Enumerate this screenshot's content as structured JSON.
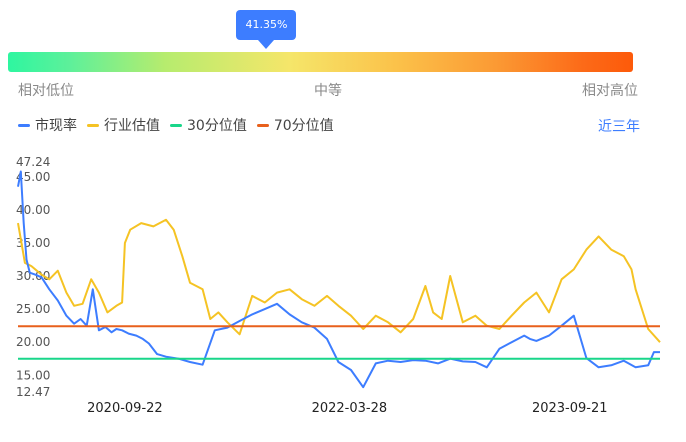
{
  "gauge": {
    "percent": 41.35,
    "value_label": "41.35%",
    "low_label": "相对低位",
    "mid_label": "中等",
    "high_label": "相对高位"
  },
  "legend": [
    {
      "name": "市现率",
      "color": "#3d7dff"
    },
    {
      "name": "行业估值",
      "color": "#f5c324"
    },
    {
      "name": "30分位值",
      "color": "#19d68a"
    },
    {
      "name": "70分位值",
      "color": "#e8601c"
    }
  ],
  "range_label": "近三年",
  "chart_data": {
    "type": "line",
    "title": "",
    "xlabel": "",
    "ylabel": "",
    "ylim": [
      12.47,
      47.24
    ],
    "y_ticks": [
      "47.24",
      "45.00",
      "40.00",
      "35.00",
      "30.00",
      "25.00",
      "20.00",
      "15.00",
      "12.47"
    ],
    "x_range": [
      "2020-01-03",
      "2024-04-30"
    ],
    "x_ticks": [
      "2020-09-22",
      "2022-03-28",
      "2023-09-21"
    ],
    "grid": false,
    "legend_position": "top-left",
    "series": [
      {
        "name": "市现率",
        "color": "#3d7dff",
        "x": [
          "2020-01-03",
          "2020-01-10",
          "2020-01-17",
          "2020-01-24",
          "2020-02-01",
          "2020-02-15",
          "2020-03-01",
          "2020-03-20",
          "2020-04-10",
          "2020-05-01",
          "2020-05-20",
          "2020-06-05",
          "2020-06-20",
          "2020-07-05",
          "2020-07-20",
          "2020-08-05",
          "2020-08-20",
          "2020-09-01",
          "2020-09-15",
          "2020-10-01",
          "2020-10-20",
          "2020-11-05",
          "2020-11-20",
          "2020-12-10",
          "2021-01-01",
          "2021-02-01",
          "2021-03-01",
          "2021-04-01",
          "2021-05-01",
          "2021-06-01",
          "2021-07-01",
          "2021-08-01",
          "2021-09-01",
          "2021-10-01",
          "2021-11-01",
          "2021-12-01",
          "2022-01-01",
          "2022-02-01",
          "2022-03-01",
          "2022-04-01",
          "2022-05-01",
          "2022-06-01",
          "2022-07-01",
          "2022-08-01",
          "2022-09-01",
          "2022-10-01",
          "2022-11-01",
          "2022-12-01",
          "2023-01-01",
          "2023-02-01",
          "2023-03-01",
          "2023-04-01",
          "2023-05-01",
          "2023-06-01",
          "2023-06-15",
          "2023-07-01",
          "2023-08-01",
          "2023-09-01",
          "2023-10-01",
          "2023-11-01",
          "2023-12-01",
          "2024-01-01",
          "2024-02-01",
          "2024-03-01",
          "2024-04-01",
          "2024-04-15",
          "2024-04-30"
        ],
        "values": [
          43.5,
          45.8,
          38.0,
          32.5,
          30.5,
          30.2,
          29.8,
          28.0,
          26.3,
          24.0,
          22.8,
          23.5,
          22.5,
          28.0,
          21.8,
          22.3,
          21.5,
          22.0,
          21.8,
          21.3,
          21.0,
          20.5,
          19.8,
          18.2,
          17.8,
          17.5,
          17.0,
          16.6,
          21.8,
          22.2,
          23.2,
          24.2,
          25.0,
          25.8,
          24.2,
          23.0,
          22.2,
          20.5,
          17.0,
          15.8,
          13.2,
          16.8,
          17.2,
          17.0,
          17.3,
          17.2,
          16.8,
          17.5,
          17.1,
          17.0,
          16.2,
          19.0,
          20.0,
          21.0,
          20.5,
          20.2,
          21.0,
          22.5,
          24.0,
          17.6,
          16.2,
          16.5,
          17.2,
          16.2,
          16.5,
          18.5,
          18.5
        ]
      },
      {
        "name": "行业估值",
        "color": "#f5c324",
        "x": [
          "2020-01-03",
          "2020-01-20",
          "2020-02-05",
          "2020-03-01",
          "2020-03-20",
          "2020-04-10",
          "2020-05-01",
          "2020-05-20",
          "2020-06-10",
          "2020-07-01",
          "2020-07-20",
          "2020-08-10",
          "2020-09-01",
          "2020-09-15",
          "2020-09-22",
          "2020-10-05",
          "2020-11-01",
          "2020-12-01",
          "2021-01-01",
          "2021-01-20",
          "2021-02-10",
          "2021-03-01",
          "2021-04-01",
          "2021-04-20",
          "2021-05-10",
          "2021-06-01",
          "2021-07-01",
          "2021-08-01",
          "2021-09-01",
          "2021-10-01",
          "2021-11-01",
          "2021-12-01",
          "2022-01-01",
          "2022-02-01",
          "2022-03-01",
          "2022-04-01",
          "2022-05-01",
          "2022-06-01",
          "2022-07-01",
          "2022-08-01",
          "2022-09-01",
          "2022-10-01",
          "2022-10-20",
          "2022-11-10",
          "2022-12-01",
          "2023-01-01",
          "2023-02-01",
          "2023-03-01",
          "2023-04-01",
          "2023-05-01",
          "2023-06-01",
          "2023-07-01",
          "2023-08-01",
          "2023-09-01",
          "2023-10-01",
          "2023-11-01",
          "2023-12-01",
          "2024-01-01",
          "2024-02-01",
          "2024-02-20",
          "2024-03-01",
          "2024-04-01",
          "2024-04-30"
        ],
        "values": [
          38.0,
          32.0,
          31.5,
          30.2,
          29.5,
          30.8,
          27.5,
          25.5,
          25.8,
          29.5,
          27.5,
          24.5,
          25.5,
          26.0,
          35.0,
          37.0,
          38.0,
          37.5,
          38.5,
          37.0,
          33.0,
          29.0,
          28.0,
          23.5,
          24.5,
          23.0,
          21.2,
          27.0,
          26.0,
          27.5,
          28.0,
          26.5,
          25.5,
          27.0,
          25.5,
          24.0,
          22.0,
          24.0,
          23.0,
          21.5,
          23.5,
          28.5,
          24.5,
          23.5,
          30.0,
          23.0,
          24.0,
          22.5,
          22.0,
          24.0,
          26.0,
          27.5,
          24.5,
          29.5,
          31.0,
          34.0,
          36.0,
          34.0,
          33.0,
          31.0,
          28.0,
          22.0,
          20.0
        ]
      },
      {
        "name": "30分位值",
        "color": "#19d68a",
        "x": [
          "2020-01-03",
          "2024-04-30"
        ],
        "values": [
          17.5,
          17.5
        ]
      },
      {
        "name": "70分位值",
        "color": "#e8601c",
        "x": [
          "2020-01-03",
          "2024-04-30"
        ],
        "values": [
          22.4,
          22.4
        ]
      }
    ]
  }
}
